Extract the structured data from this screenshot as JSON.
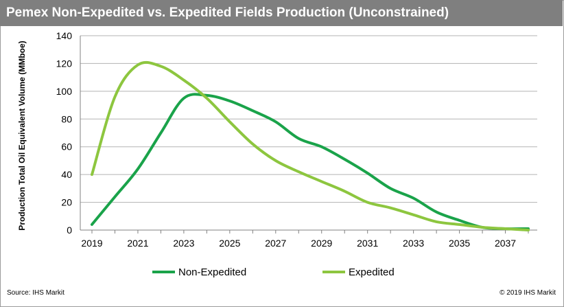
{
  "header": {
    "title": "Pemex Non-Expedited vs. Expedited Fields Production (Unconstrained)"
  },
  "footer": {
    "source": "Source: IHS Markit",
    "copyright": "© 2019 IHS Markit"
  },
  "colors": {
    "title_bar": "#7f7f7f",
    "non_expedited": "#1aa34a",
    "expedited": "#8dc63f",
    "grid": "#b3b3b3"
  },
  "chart_data": {
    "type": "line",
    "title": "Pemex Non-Expedited vs. Expedited Fields Production (Unconstrained)",
    "xlabel": "",
    "ylabel": "Production Total Oil Equivalent Volume (MMboe)",
    "xlim": [
      2019,
      2038
    ],
    "ylim": [
      0,
      140
    ],
    "yticks": [
      0,
      20,
      40,
      60,
      80,
      100,
      120,
      140
    ],
    "xticks": [
      2019,
      2021,
      2023,
      2025,
      2027,
      2029,
      2031,
      2033,
      2035,
      2037
    ],
    "grid": true,
    "legend_position": "bottom-center",
    "series": [
      {
        "name": "Non-Expedited",
        "color": "#1aa34a",
        "x": [
          2019,
          2020,
          2021,
          2022,
          2023,
          2024,
          2025,
          2026,
          2027,
          2028,
          2029,
          2030,
          2031,
          2032,
          2033,
          2034,
          2035,
          2036,
          2037,
          2038
        ],
        "values": [
          4,
          24,
          44,
          70,
          95,
          97,
          93,
          86,
          78,
          66,
          60,
          51,
          41,
          30,
          23,
          13,
          7,
          2,
          1,
          1
        ]
      },
      {
        "name": "Expedited",
        "color": "#8dc63f",
        "x": [
          2019,
          2020,
          2021,
          2022,
          2023,
          2024,
          2025,
          2026,
          2027,
          2028,
          2029,
          2030,
          2031,
          2032,
          2033,
          2034,
          2035,
          2036,
          2037,
          2038
        ],
        "values": [
          40,
          96,
          119,
          118,
          108,
          95,
          78,
          62,
          50,
          42,
          35,
          28,
          20,
          16,
          11,
          6,
          4,
          2,
          1,
          0
        ]
      }
    ]
  }
}
